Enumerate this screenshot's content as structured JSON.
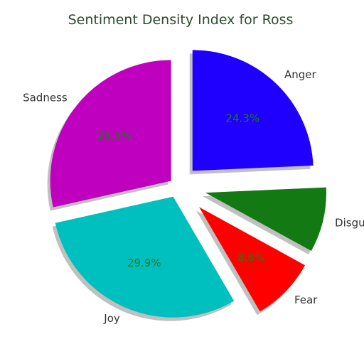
{
  "chart_data": {
    "type": "pie",
    "title": "Sentiment Density Index for Ross",
    "slices": [
      {
        "label": "Sadness",
        "value": 28.5,
        "pct_text": "28.5%",
        "color": "#bf00bf"
      },
      {
        "label": "Joy",
        "value": 29.9,
        "pct_text": "29.9%",
        "color": "#00bfbf"
      },
      {
        "label": "Fear",
        "value": 8.6,
        "pct_text": "8.6%",
        "color": "#ff0000"
      },
      {
        "label": "Disgust",
        "value": 8.7,
        "pct_text": "",
        "color": "#137a13"
      },
      {
        "label": "Anger",
        "value": 24.3,
        "pct_text": "24.3%",
        "color": "#1f00ff"
      }
    ],
    "percent_text_color": "#1a7a1a",
    "shadow": true,
    "exploded": true
  }
}
